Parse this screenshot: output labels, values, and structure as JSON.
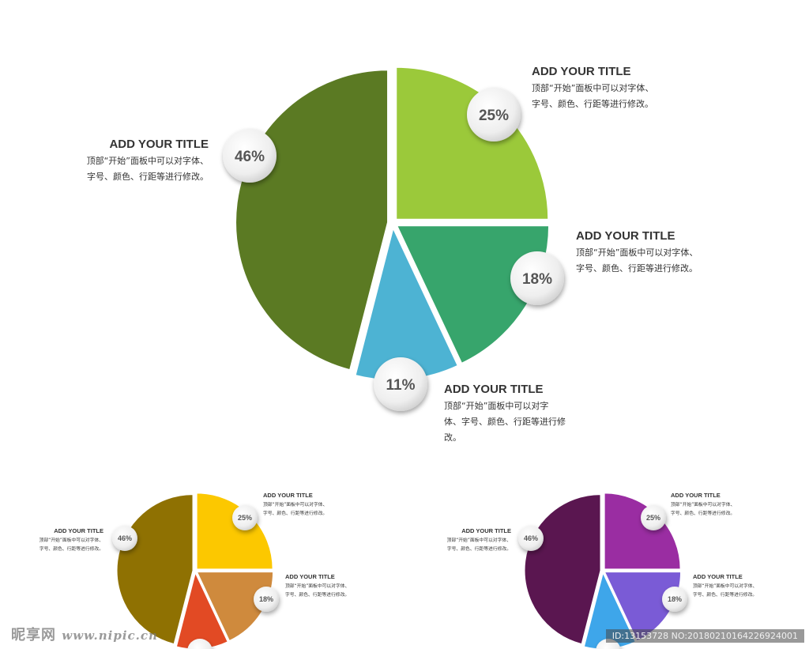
{
  "chart_data": [
    {
      "type": "pie",
      "categories": [
        "ADD YOUR TITLE",
        "ADD YOUR TITLE",
        "ADD YOUR TITLE",
        "ADD YOUR TITLE"
      ],
      "values": [
        25,
        18,
        11,
        46
      ],
      "value_labels": [
        "25%",
        "18%",
        "11%",
        "46%"
      ],
      "colors": [
        "#9bc93a",
        "#37a56c",
        "#4db3d3",
        "#5b7a23"
      ],
      "descriptions": [
        [
          "顶部“开始”面板中可以对字体、",
          "字号、颜色、行距等进行修改。"
        ],
        [
          "顶部“开始”面板中可以对字体、",
          "字号、颜色、行距等进行修改。"
        ],
        [
          "顶部“开始”面板中可以对字",
          "体、字号、颜色、行距等进行修",
          "改。"
        ],
        [
          "顶部“开始”面板中可以对字体、",
          "字号、颜色、行距等进行修改。"
        ]
      ]
    },
    {
      "type": "pie",
      "categories": [
        "ADD YOUR TITLE",
        "ADD YOUR TITLE",
        "",
        "ADD YOUR TITLE"
      ],
      "values": [
        25,
        18,
        11,
        46
      ],
      "value_labels": [
        "25%",
        "18%",
        "",
        "46%"
      ],
      "colors": [
        "#fcc800",
        "#cf8a3d",
        "#e24a24",
        "#8f7102"
      ],
      "descriptions": [
        [
          "顶部“开始”面板中可以对字体、",
          "字号、颜色、行距等进行修改。"
        ],
        [
          "顶部“开始”面板中可以对字体、",
          "字号、颜色、行距等进行修改。"
        ],
        [],
        [
          "顶部“开始”面板中可以对字体、",
          "字号、颜色、行距等进行修改。"
        ]
      ]
    },
    {
      "type": "pie",
      "categories": [
        "ADD YOUR TITLE",
        "ADD YOUR TITLE",
        "",
        "ADD YOUR TITLE"
      ],
      "values": [
        25,
        18,
        11,
        46
      ],
      "value_labels": [
        "25%",
        "18%",
        "",
        "46%"
      ],
      "colors": [
        "#9a2da2",
        "#7a5bd6",
        "#3ea6ea",
        "#5a1650"
      ],
      "descriptions": [
        [
          "顶部“开始”面板中可以对字体、",
          "字号、颜色、行距等进行修改。"
        ],
        [
          "顶部“开始”面板中可以对字体、",
          "字号、颜色、行距等进行修改。"
        ],
        [],
        [
          "顶部“开始”面板中可以对字体、",
          "字号、颜色、行距等进行修改。"
        ]
      ]
    }
  ],
  "watermark": {
    "brand": "昵享网",
    "url": "www.nipic.cn",
    "id_text": "ID:13153728 NO:20180210164226924001"
  }
}
